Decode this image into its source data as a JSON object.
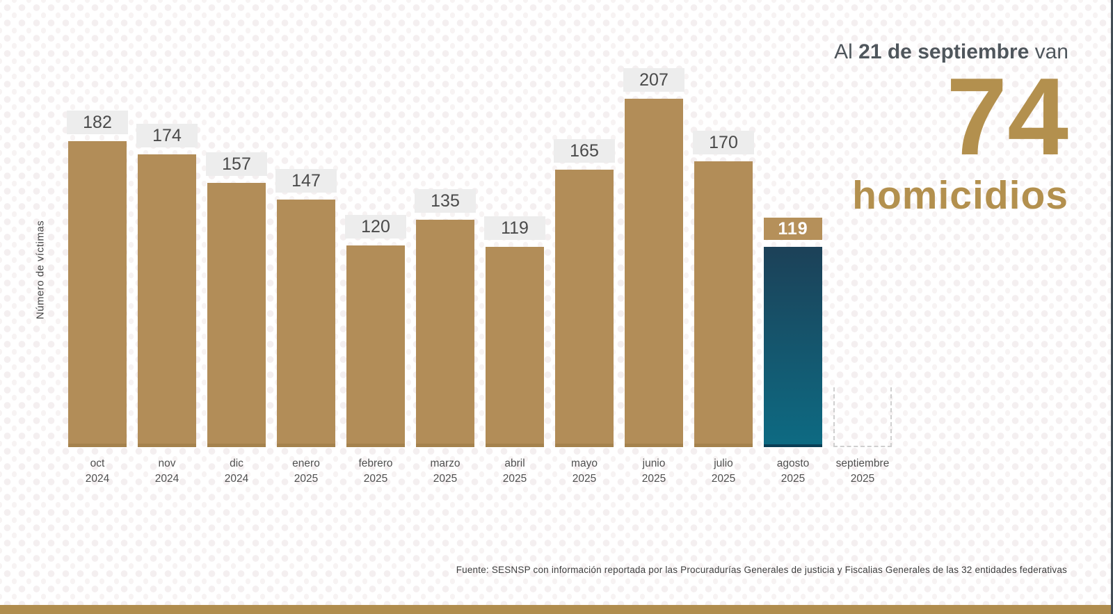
{
  "headline": {
    "prefix": "Al ",
    "highlight": "21 de septiembre",
    "suffix": " van",
    "number": "74",
    "word": "homicidios"
  },
  "chart_data": {
    "type": "bar",
    "title": "",
    "xlabel": "",
    "ylabel": "Número de víctimas",
    "ylim": [
      0,
      207
    ],
    "grid": false,
    "legend": false,
    "categories": [
      "oct 2024",
      "nov 2024",
      "dic 2024",
      "enero 2025",
      "febrero 2025",
      "marzo 2025",
      "abril 2025",
      "mayo 2025",
      "junio 2025",
      "julio 2025",
      "agosto 2025",
      "septiembre 2025"
    ],
    "values": [
      182,
      174,
      157,
      147,
      120,
      135,
      119,
      165,
      207,
      170,
      119,
      null
    ],
    "highlight_index": 10,
    "pending_index": 11,
    "bar_color": "#b28d58",
    "bar_bottom_edge": "#a5824d",
    "highlight_gradient_top": "#1c4158",
    "highlight_gradient_bottom": "#0d6b83",
    "highlight_bottom_edge": "#0a3e55",
    "value_label_bg": "#ededed",
    "value_label_color": "#4a4a4a",
    "highlight_label_bg": "#b5905a",
    "highlight_label_color": "#ffffff"
  },
  "footer": {
    "source": "Fuente: SESNSP con información reportada por las Procuradurías Generales de justicia y Fiscalias Generales de las 32 entidades federativas",
    "strip_color": "#b08d4e"
  },
  "colors": {
    "accent_gold": "#b3904e",
    "headline_text": "#4f565c",
    "axis_text": "#4f4f4f",
    "background": "#ffffff",
    "pattern": "#f4f0f0",
    "edge_line": "#414c54"
  }
}
